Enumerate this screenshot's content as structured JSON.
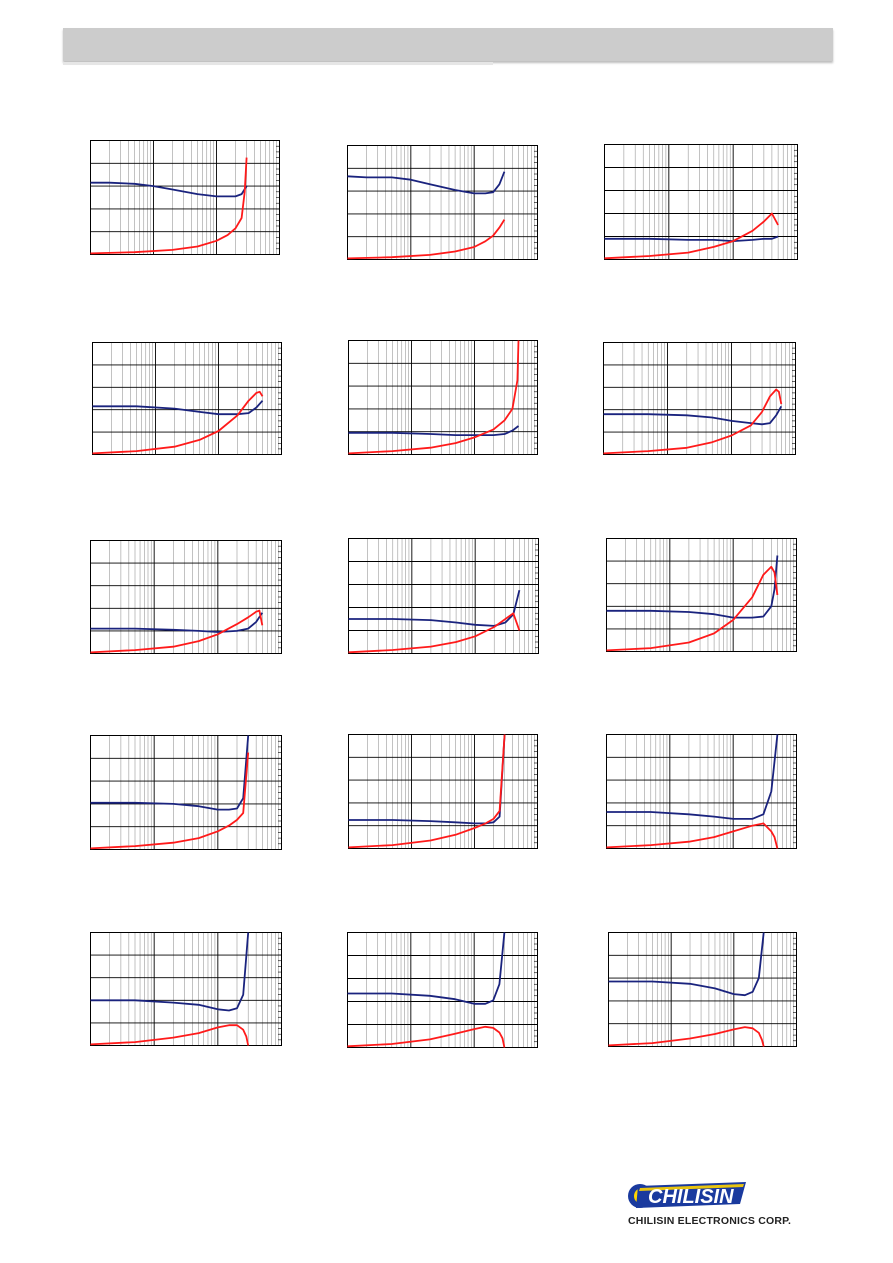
{
  "company": {
    "name": "CHILISIN ELECTRONICS CORP.",
    "logo_text": "CHILISIN"
  },
  "colors": {
    "header": "#cccccc",
    "blue_series": "#1a237e",
    "red_series": "#ff1a1a",
    "grid": "#000000"
  },
  "chart_data": [
    {
      "type": "line",
      "xscale": "log",
      "ylim": [
        0,
        100
      ],
      "series": [
        {
          "x": [
            1,
            2,
            5,
            10,
            20,
            50,
            100,
            150,
            200,
            250,
            300
          ],
          "y": [
            63,
            63,
            62,
            60,
            57,
            53,
            51,
            51,
            51,
            53,
            60
          ],
          "color": "blue"
        },
        {
          "x": [
            1,
            5,
            20,
            50,
            100,
            150,
            200,
            250,
            280,
            300
          ],
          "y": [
            1,
            2,
            4,
            7,
            12,
            17,
            23,
            32,
            55,
            85
          ],
          "color": "red"
        }
      ]
    },
    {
      "type": "line",
      "xscale": "log",
      "ylim": [
        0,
        100
      ],
      "series": [
        {
          "x": [
            1,
            2,
            5,
            10,
            20,
            50,
            100,
            150,
            200,
            250,
            300
          ],
          "y": [
            73,
            72,
            72,
            70,
            66,
            61,
            58,
            58,
            59,
            66,
            77
          ],
          "color": "blue"
        },
        {
          "x": [
            1,
            5,
            20,
            50,
            100,
            150,
            200,
            250,
            300
          ],
          "y": [
            1,
            2,
            4,
            7,
            11,
            16,
            21,
            28,
            35
          ],
          "color": "red"
        }
      ]
    },
    {
      "type": "line",
      "xscale": "log",
      "ylim": [
        0,
        100
      ],
      "series": [
        {
          "x": [
            1,
            5,
            20,
            50,
            100,
            200,
            300,
            400,
            500
          ],
          "y": [
            18,
            18,
            17,
            17,
            16,
            17,
            18,
            18,
            20
          ],
          "color": "blue"
        },
        {
          "x": [
            1,
            5,
            20,
            50,
            100,
            200,
            300,
            400,
            500
          ],
          "y": [
            1,
            3,
            6,
            11,
            16,
            25,
            33,
            40,
            30
          ],
          "color": "red"
        }
      ]
    },
    {
      "type": "line",
      "xscale": "log",
      "ylim": [
        0,
        100
      ],
      "series": [
        {
          "x": [
            1,
            5,
            20,
            50,
            100,
            200,
            300,
            400,
            500
          ],
          "y": [
            43,
            43,
            41,
            38,
            36,
            36,
            37,
            42,
            48
          ],
          "color": "blue"
        },
        {
          "x": [
            1,
            5,
            20,
            50,
            100,
            200,
            300,
            400,
            450,
            500
          ],
          "y": [
            1,
            3,
            7,
            13,
            21,
            35,
            48,
            55,
            56,
            52
          ],
          "color": "red"
        }
      ]
    },
    {
      "type": "line",
      "xscale": "log",
      "ylim": [
        0,
        100
      ],
      "series": [
        {
          "x": [
            1,
            5,
            20,
            50,
            100,
            200,
            300,
            400,
            500
          ],
          "y": [
            19,
            19,
            18,
            17,
            17,
            17,
            18,
            21,
            25
          ],
          "color": "blue"
        },
        {
          "x": [
            1,
            5,
            20,
            50,
            100,
            200,
            300,
            400,
            480,
            500
          ],
          "y": [
            1,
            3,
            6,
            10,
            15,
            22,
            30,
            40,
            65,
            100
          ],
          "color": "red"
        }
      ]
    },
    {
      "type": "line",
      "xscale": "log",
      "ylim": [
        0,
        100
      ],
      "series": [
        {
          "x": [
            1,
            5,
            20,
            50,
            100,
            200,
            300,
            400,
            500,
            600
          ],
          "y": [
            36,
            36,
            35,
            33,
            30,
            28,
            27,
            28,
            35,
            43
          ],
          "color": "blue"
        },
        {
          "x": [
            1,
            5,
            20,
            50,
            100,
            200,
            300,
            400,
            500,
            550,
            600
          ],
          "y": [
            1,
            3,
            6,
            11,
            17,
            26,
            38,
            52,
            58,
            56,
            45
          ],
          "color": "red"
        }
      ]
    },
    {
      "type": "line",
      "xscale": "log",
      "ylim": [
        0,
        100
      ],
      "series": [
        {
          "x": [
            1,
            5,
            20,
            50,
            100,
            200,
            300,
            400,
            500
          ],
          "y": [
            22,
            22,
            21,
            20,
            19,
            20,
            22,
            28,
            36
          ],
          "color": "blue"
        },
        {
          "x": [
            1,
            5,
            20,
            50,
            100,
            200,
            300,
            400,
            450,
            500
          ],
          "y": [
            1,
            3,
            6,
            11,
            17,
            26,
            32,
            37,
            38,
            25
          ],
          "color": "red"
        }
      ]
    },
    {
      "type": "line",
      "xscale": "log",
      "ylim": [
        0,
        100
      ],
      "series": [
        {
          "x": [
            1,
            5,
            20,
            50,
            100,
            200,
            300,
            400,
            500
          ],
          "y": [
            30,
            30,
            29,
            27,
            25,
            24,
            27,
            34,
            55
          ],
          "color": "blue"
        },
        {
          "x": [
            1,
            5,
            20,
            50,
            100,
            200,
            300,
            400,
            500
          ],
          "y": [
            1,
            3,
            6,
            10,
            15,
            23,
            30,
            35,
            20
          ],
          "color": "red"
        }
      ]
    },
    {
      "type": "line",
      "xscale": "log",
      "ylim": [
        0,
        100
      ],
      "series": [
        {
          "x": [
            1,
            5,
            20,
            50,
            100,
            200,
            300,
            400,
            450,
            500
          ],
          "y": [
            36,
            36,
            35,
            33,
            30,
            30,
            31,
            40,
            55,
            85
          ],
          "color": "blue"
        },
        {
          "x": [
            1,
            5,
            20,
            50,
            100,
            200,
            300,
            400,
            450,
            500
          ],
          "y": [
            1,
            3,
            8,
            16,
            28,
            48,
            68,
            75,
            70,
            50
          ],
          "color": "red"
        }
      ]
    },
    {
      "type": "line",
      "xscale": "log",
      "ylim": [
        0,
        100
      ],
      "series": [
        {
          "x": [
            1,
            5,
            20,
            50,
            100,
            150,
            200,
            250,
            300
          ],
          "y": [
            41,
            41,
            40,
            38,
            35,
            35,
            36,
            45,
            100
          ],
          "color": "blue"
        },
        {
          "x": [
            1,
            5,
            20,
            50,
            100,
            150,
            200,
            250,
            300
          ],
          "y": [
            1,
            3,
            6,
            10,
            16,
            21,
            26,
            32,
            85
          ],
          "color": "red"
        }
      ]
    },
    {
      "type": "line",
      "xscale": "log",
      "ylim": [
        0,
        100
      ],
      "series": [
        {
          "x": [
            1,
            5,
            20,
            50,
            100,
            150,
            200,
            250,
            300
          ],
          "y": [
            25,
            25,
            24,
            23,
            22,
            22,
            23,
            28,
            100
          ],
          "color": "blue"
        },
        {
          "x": [
            1,
            5,
            20,
            50,
            100,
            150,
            200,
            250,
            300
          ],
          "y": [
            1,
            3,
            7,
            12,
            18,
            22,
            26,
            33,
            100
          ],
          "color": "red"
        }
      ]
    },
    {
      "type": "line",
      "xscale": "log",
      "ylim": [
        0,
        100
      ],
      "series": [
        {
          "x": [
            1,
            5,
            20,
            50,
            100,
            200,
            300,
            400,
            500
          ],
          "y": [
            32,
            32,
            30,
            28,
            26,
            26,
            30,
            50,
            100
          ],
          "color": "blue"
        },
        {
          "x": [
            1,
            5,
            20,
            50,
            100,
            200,
            300,
            400,
            450,
            500
          ],
          "y": [
            1,
            3,
            6,
            10,
            15,
            20,
            22,
            15,
            10,
            0
          ],
          "color": "red"
        }
      ]
    },
    {
      "type": "line",
      "xscale": "log",
      "ylim": [
        0,
        100
      ],
      "series": [
        {
          "x": [
            1,
            5,
            20,
            50,
            100,
            150,
            200,
            250,
            300
          ],
          "y": [
            40,
            40,
            38,
            36,
            32,
            31,
            33,
            45,
            100
          ],
          "color": "blue"
        },
        {
          "x": [
            1,
            5,
            20,
            50,
            100,
            150,
            200,
            250,
            280,
            300
          ],
          "y": [
            1,
            3,
            7,
            11,
            16,
            18,
            18,
            14,
            8,
            0
          ],
          "color": "red"
        }
      ]
    },
    {
      "type": "line",
      "xscale": "log",
      "ylim": [
        0,
        100
      ],
      "series": [
        {
          "x": [
            1,
            5,
            20,
            50,
            100,
            150,
            200,
            250,
            300
          ],
          "y": [
            47,
            47,
            45,
            42,
            38,
            38,
            41,
            55,
            100
          ],
          "color": "blue"
        },
        {
          "x": [
            1,
            5,
            20,
            50,
            100,
            150,
            200,
            250,
            280,
            300
          ],
          "y": [
            1,
            3,
            7,
            12,
            16,
            18,
            17,
            13,
            8,
            0
          ],
          "color": "red"
        }
      ]
    },
    {
      "type": "line",
      "xscale": "log",
      "ylim": [
        0,
        100
      ],
      "series": [
        {
          "x": [
            1,
            5,
            20,
            50,
            100,
            150,
            200,
            250,
            300
          ],
          "y": [
            57,
            57,
            55,
            51,
            46,
            45,
            48,
            60,
            100
          ],
          "color": "blue"
        },
        {
          "x": [
            1,
            5,
            20,
            50,
            100,
            150,
            200,
            250,
            280,
            300
          ],
          "y": [
            1,
            3,
            7,
            11,
            15,
            17,
            16,
            12,
            6,
            0
          ],
          "color": "red"
        }
      ]
    }
  ]
}
